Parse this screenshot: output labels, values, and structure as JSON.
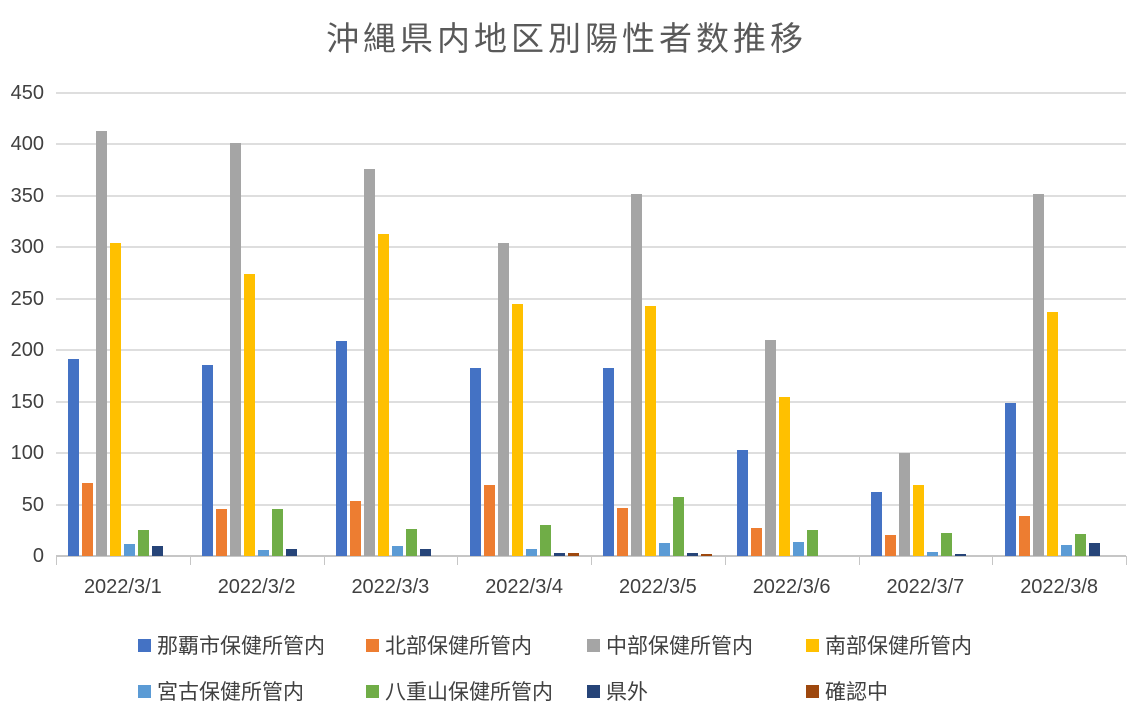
{
  "title": "沖縄県内地区別陽性者数推移",
  "chart_data": {
    "type": "bar",
    "title": "沖縄県内地区別陽性者数推移",
    "categories": [
      "2022/3/1",
      "2022/3/2",
      "2022/3/3",
      "2022/3/4",
      "2022/3/5",
      "2022/3/6",
      "2022/3/7",
      "2022/3/8"
    ],
    "series": [
      {
        "name": "那覇市保健所管内",
        "color": "#4472C4",
        "values": [
          191,
          186,
          209,
          183,
          183,
          103,
          62,
          149
        ]
      },
      {
        "name": "北部保健所管内",
        "color": "#ED7D31",
        "values": [
          71,
          46,
          53,
          69,
          47,
          27,
          20,
          39
        ]
      },
      {
        "name": "中部保健所管内",
        "color": "#A5A5A5",
        "values": [
          413,
          401,
          376,
          304,
          352,
          210,
          100,
          352
        ]
      },
      {
        "name": "南部保健所管内",
        "color": "#FFC000",
        "values": [
          304,
          274,
          313,
          245,
          243,
          155,
          69,
          237
        ]
      },
      {
        "name": "宮古保健所管内",
        "color": "#5B9BD5",
        "values": [
          12,
          6,
          10,
          7,
          13,
          14,
          4,
          11
        ]
      },
      {
        "name": "八重山保健所管内",
        "color": "#70AD47",
        "values": [
          25,
          46,
          26,
          30,
          57,
          25,
          22,
          21
        ]
      },
      {
        "name": "県外",
        "color": "#264478",
        "values": [
          10,
          7,
          7,
          3,
          3,
          0,
          2,
          13
        ]
      },
      {
        "name": "確認中",
        "color": "#9E480E",
        "values": [
          0,
          0,
          0,
          3,
          2,
          0,
          0,
          0
        ]
      }
    ],
    "ylim": [
      0,
      450
    ],
    "ytick_step": 50,
    "ytick_labels": [
      "450",
      "400",
      "350",
      "300",
      "250",
      "200",
      "150",
      "100",
      "50",
      "0"
    ],
    "grid": true,
    "legend_position": "bottom",
    "legend_rows": 2
  }
}
